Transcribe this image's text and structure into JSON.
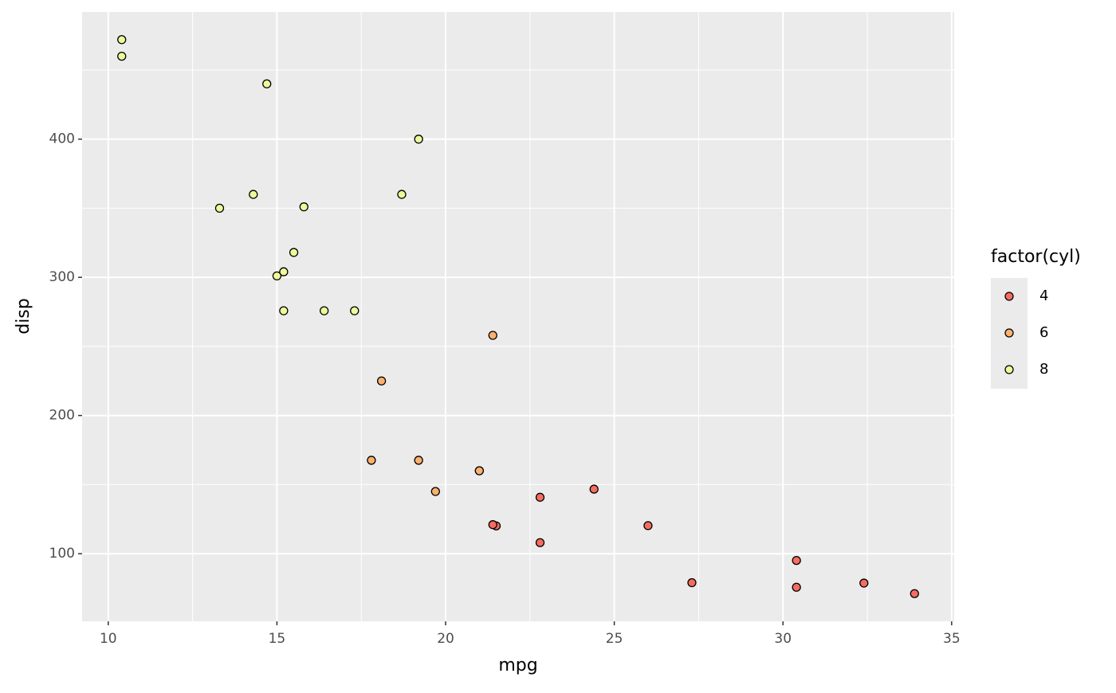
{
  "chart_data": {
    "type": "scatter",
    "x_label": "mpg",
    "y_label": "disp",
    "legend_title": "factor(cyl)",
    "legend_position": "right",
    "xlim": [
      9.225,
      35.075
    ],
    "ylim": [
      51.055,
      492.045
    ],
    "xticks": [
      10,
      15,
      20,
      25,
      30,
      35
    ],
    "yticks": [
      100,
      200,
      300,
      400
    ],
    "x_minor_breaks": [
      12.5,
      17.5,
      22.5,
      27.5,
      32.5
    ],
    "y_minor_breaks": [
      150,
      250,
      350,
      450
    ],
    "grid": true,
    "series": [
      {
        "name": "4",
        "color": "#f46d5f",
        "x": [
          22.8,
          24.4,
          22.8,
          32.4,
          30.4,
          33.9,
          21.5,
          27.3,
          26.0,
          30.4,
          21.4
        ],
        "values": [
          108,
          146.7,
          140.8,
          78.7,
          75.7,
          71.1,
          120.1,
          79,
          120.3,
          95.1,
          121
        ]
      },
      {
        "name": "6",
        "color": "#fdb06e",
        "x": [
          21.0,
          21.0,
          21.4,
          18.1,
          19.2,
          17.8,
          19.7
        ],
        "values": [
          160,
          160,
          258,
          225,
          167.6,
          167.6,
          145
        ]
      },
      {
        "name": "8",
        "color": "#eef99a",
        "x": [
          18.7,
          14.3,
          16.4,
          17.3,
          15.2,
          10.4,
          10.4,
          14.7,
          15.5,
          15.2,
          13.3,
          19.2,
          15.8,
          15.0
        ],
        "values": [
          360,
          360,
          275.8,
          275.8,
          275.8,
          472,
          460,
          440,
          318,
          304,
          350,
          400,
          351,
          301
        ]
      }
    ]
  }
}
